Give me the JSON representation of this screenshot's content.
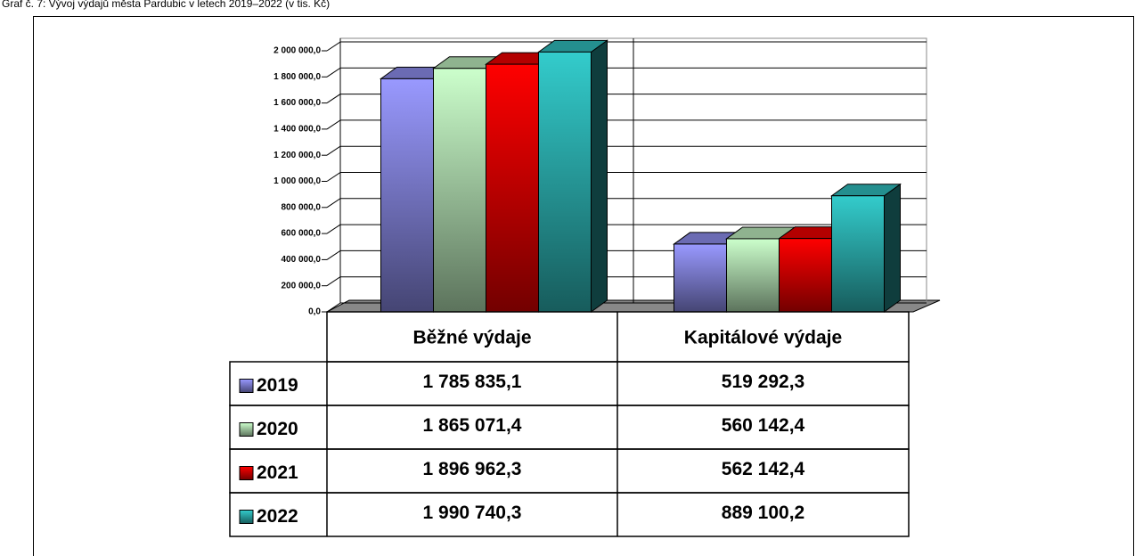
{
  "chart_data": {
    "type": "bar3d",
    "title": "Graf č. 7: Vývoj výdajů města Pardubic v letech 2019–2022 (v tis. Kč)",
    "categories": [
      "Běžné výdaje",
      "Kapitálové výdaje"
    ],
    "series": [
      {
        "name": "2019",
        "color": "#9999ff",
        "values": [
          1785835.1,
          519292.3
        ],
        "value_labels": [
          "1 785 835,1",
          "519 292,3"
        ]
      },
      {
        "name": "2020",
        "color": "#ccffcc",
        "values": [
          1865071.4,
          560142.4
        ],
        "value_labels": [
          "1 865 071,4",
          "560 142,4"
        ]
      },
      {
        "name": "2021",
        "color": "#ff0000",
        "values": [
          1896962.3,
          562142.4
        ],
        "value_labels": [
          "1 896 962,3",
          "562 142,4"
        ]
      },
      {
        "name": "2022",
        "color": "#33cccc",
        "values": [
          1990740.3,
          889100.2
        ],
        "value_labels": [
          "1 990 740,3",
          "889 100,2"
        ]
      }
    ],
    "ylim": [
      0,
      2000000
    ],
    "yticks": [
      {
        "value": 0,
        "label": "0,0"
      },
      {
        "value": 200000,
        "label": "200 000,0"
      },
      {
        "value": 400000,
        "label": "400 000,0"
      },
      {
        "value": 600000,
        "label": "600 000,0"
      },
      {
        "value": 800000,
        "label": "800 000,0"
      },
      {
        "value": 1000000,
        "label": "1 000 000,0"
      },
      {
        "value": 1200000,
        "label": "1 200 000,0"
      },
      {
        "value": 1400000,
        "label": "1 400 000,0"
      },
      {
        "value": 1600000,
        "label": "1 600 000,0"
      },
      {
        "value": 1800000,
        "label": "1 800 000,0"
      },
      {
        "value": 2000000,
        "label": "2 000 000,0"
      }
    ],
    "grid": true
  }
}
